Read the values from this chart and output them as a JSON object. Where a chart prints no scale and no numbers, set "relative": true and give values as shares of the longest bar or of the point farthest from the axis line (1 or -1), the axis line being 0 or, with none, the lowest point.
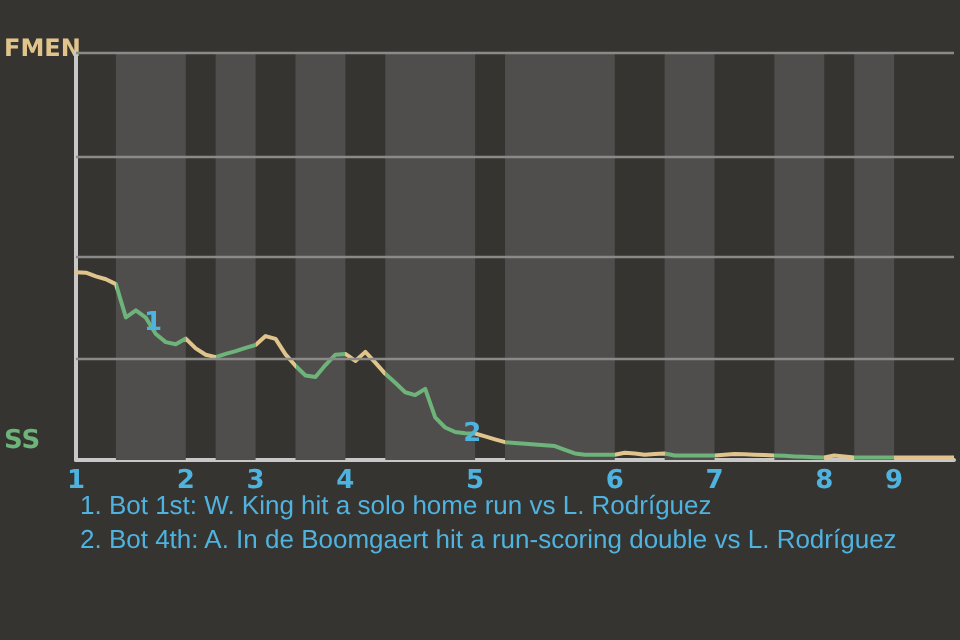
{
  "chart_data": {
    "type": "line",
    "relative": true,
    "annotations": [
      "FMEN",
      "SS",
      {
        "text": "1",
        "y": 0.76
      },
      {
        "text": "2",
        "y": 0.173
      },
      "1. Bot 1st: W. King hit a solo home run vs L. Rodríguez",
      "2. Bot 4th: A. In de Boomgaert hit a run-scoring double vs L. Rodríguez"
    ],
    "categories": [
      "1",
      null,
      null,
      null,
      null,
      null,
      null,
      null,
      null,
      null,
      null,
      "2",
      null,
      null,
      null,
      null,
      null,
      null,
      "3",
      null,
      null,
      null,
      null,
      null,
      null,
      null,
      null,
      "4",
      null,
      null,
      null,
      null,
      null,
      null,
      null,
      null,
      null,
      null,
      null,
      null,
      "5",
      null,
      null,
      null,
      null,
      null,
      null,
      null,
      null,
      null,
      null,
      null,
      null,
      null,
      "6",
      null,
      null,
      null,
      null,
      null,
      null,
      null,
      null,
      null,
      "7",
      null,
      null,
      null,
      null,
      null,
      null,
      null,
      null,
      null,
      null,
      "8",
      null,
      null,
      null,
      null,
      null,
      null,
      "9",
      null,
      null,
      null,
      null,
      null,
      null
    ],
    "series": [
      {
        "values": [
          1,
          0.998,
          0.978,
          0.963,
          0.937,
          0.76,
          0.797,
          0.758,
          0.671,
          0.628,
          0.617,
          0.647,
          0.595,
          0.561,
          0.548,
          0.565,
          0.58,
          0.597,
          0.613,
          0.66,
          0.645,
          0.563,
          0.502,
          0.45,
          0.442,
          0.506,
          0.561,
          0.565,
          0.528,
          0.576,
          0.519,
          0.459,
          0.411,
          0.361,
          0.346,
          0.379,
          0.227,
          0.173,
          0.149,
          0.143,
          0.141,
          0.126,
          0.11,
          0.095,
          0.091,
          0.087,
          0.082,
          0.078,
          0.074,
          0.054,
          0.035,
          0.028,
          0.028,
          0.028,
          0.028,
          0.039,
          0.035,
          0.028,
          0.032,
          0.035,
          0.024,
          0.024,
          0.024,
          0.024,
          0.024,
          0.028,
          0.032,
          0.03,
          0.028,
          0.026,
          0.024,
          0.022,
          0.019,
          0.017,
          0.015,
          0.013,
          0.024,
          0.019,
          0.013,
          0.013,
          0.013,
          0.013,
          0.013,
          0.013,
          0.013,
          0.013,
          0.013,
          0.013,
          0.013
        ],
        "colors": [
          "#e0c48c",
          "#e0c48c",
          "#e0c48c",
          "#e0c48c",
          "#e0c48c",
          "#6db37a",
          "#6db37a",
          "#6db37a",
          "#6db37a",
          "#6db37a",
          "#6db37a",
          "#6db37a",
          "#e0c48c",
          "#e0c48c",
          "#e0c48c",
          "#6db37a",
          "#6db37a",
          "#6db37a",
          "#6db37a",
          "#e0c48c",
          "#e0c48c",
          "#e0c48c",
          "#e0c48c",
          "#6db37a",
          "#6db37a",
          "#6db37a",
          "#6db37a",
          "#6db37a",
          "#e0c48c",
          "#e0c48c",
          "#e0c48c",
          "#e0c48c",
          "#6db37a",
          "#6db37a",
          "#6db37a",
          "#6db37a",
          "#6db37a",
          "#6db37a",
          "#6db37a",
          "#6db37a",
          "#6db37a",
          "#e0c48c",
          "#e0c48c",
          "#e0c48c",
          "#6db37a",
          "#6db37a",
          "#6db37a",
          "#6db37a",
          "#6db37a",
          "#6db37a",
          "#6db37a",
          "#6db37a",
          "#6db37a",
          "#6db37a",
          "#6db37a",
          "#e0c48c",
          "#e0c48c",
          "#e0c48c",
          "#e0c48c",
          "#e0c48c",
          "#6db37a",
          "#6db37a",
          "#6db37a",
          "#6db37a",
          "#6db37a",
          "#e0c48c",
          "#e0c48c",
          "#e0c48c",
          "#e0c48c",
          "#e0c48c",
          "#e0c48c",
          "#6db37a",
          "#6db37a",
          "#6db37a",
          "#6db37a",
          "#6db37a",
          "#e0c48c",
          "#e0c48c",
          "#e0c48c",
          "#6db37a",
          "#6db37a",
          "#6db37a",
          "#6db37a",
          "#e0c48c",
          "#e0c48c",
          "#e0c48c",
          "#e0c48c",
          "#e0c48c",
          "#e0c48c"
        ]
      }
    ],
    "ref_lines": [
      {
        "axis": "y",
        "value": 0.541,
        "color": "#8a8a88"
      },
      {
        "axis": "y",
        "value": 1.082,
        "color": "#8a8a88"
      },
      {
        "axis": "y",
        "value": 1.623,
        "color": "#8a8a88"
      },
      {
        "axis": "y",
        "value": 2.165,
        "color": "#8a8a88"
      }
    ],
    "marker": "none",
    "line_style": "solid"
  }
}
